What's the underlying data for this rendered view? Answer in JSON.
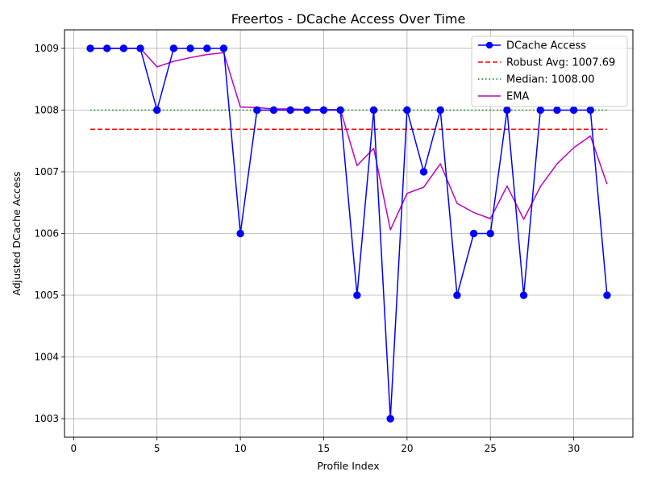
{
  "chart_data": {
    "type": "line",
    "title": "Freertos - DCache Access Over Time",
    "xlabel": "Profile Index",
    "ylabel": "Adjusted DCache Access",
    "xlim": [
      -0.55,
      33.55
    ],
    "ylim": [
      1002.7,
      1009.3
    ],
    "xticks": [
      0,
      5,
      10,
      15,
      20,
      25,
      30
    ],
    "yticks": [
      1003,
      1004,
      1005,
      1006,
      1007,
      1008,
      1009
    ],
    "grid": true,
    "legend_position": "top-right",
    "x": [
      1,
      2,
      3,
      4,
      5,
      6,
      7,
      8,
      9,
      10,
      11,
      12,
      13,
      14,
      15,
      16,
      17,
      18,
      19,
      20,
      21,
      22,
      23,
      24,
      25,
      26,
      27,
      28,
      29,
      30,
      31,
      32
    ],
    "series": [
      {
        "name": "DCache Access",
        "style": "line-marker",
        "color": "#0000ff",
        "values": [
          1009,
          1009,
          1009,
          1009,
          1008,
          1009,
          1009,
          1009,
          1009,
          1006,
          1008,
          1008,
          1008,
          1008,
          1008,
          1008,
          1005,
          1008,
          1003,
          1008,
          1007,
          1008,
          1005,
          1006,
          1006,
          1008,
          1005,
          1008,
          1008,
          1008,
          1008,
          1005
        ]
      },
      {
        "name": "Robust Avg: 1007.69",
        "style": "dashed",
        "color": "#ff0000",
        "values": [
          1007.69,
          1007.69,
          1007.69,
          1007.69,
          1007.69,
          1007.69,
          1007.69,
          1007.69,
          1007.69,
          1007.69,
          1007.69,
          1007.69,
          1007.69,
          1007.69,
          1007.69,
          1007.69,
          1007.69,
          1007.69,
          1007.69,
          1007.69,
          1007.69,
          1007.69,
          1007.69,
          1007.69,
          1007.69,
          1007.69,
          1007.69,
          1007.69,
          1007.69,
          1007.69,
          1007.69,
          1007.69
        ]
      },
      {
        "name": "Median: 1008.00",
        "style": "dotted",
        "color": "#008000",
        "values": [
          1008,
          1008,
          1008,
          1008,
          1008,
          1008,
          1008,
          1008,
          1008,
          1008,
          1008,
          1008,
          1008,
          1008,
          1008,
          1008,
          1008,
          1008,
          1008,
          1008,
          1008,
          1008,
          1008,
          1008,
          1008,
          1008,
          1008,
          1008,
          1008,
          1008,
          1008,
          1008
        ]
      },
      {
        "name": "EMA",
        "style": "solid",
        "color": "#bf00bf",
        "values": [
          1009,
          1009,
          1009,
          1009,
          1008.7,
          1008.79,
          1008.85,
          1008.9,
          1008.93,
          1008.05,
          1008.04,
          1008.02,
          1008.02,
          1008.01,
          1008.01,
          1008.01,
          1007.1,
          1007.38,
          1006.06,
          1006.65,
          1006.75,
          1007.13,
          1006.49,
          1006.34,
          1006.24,
          1006.77,
          1006.23,
          1006.76,
          1007.13,
          1007.39,
          1007.58,
          1006.8
        ]
      }
    ]
  }
}
